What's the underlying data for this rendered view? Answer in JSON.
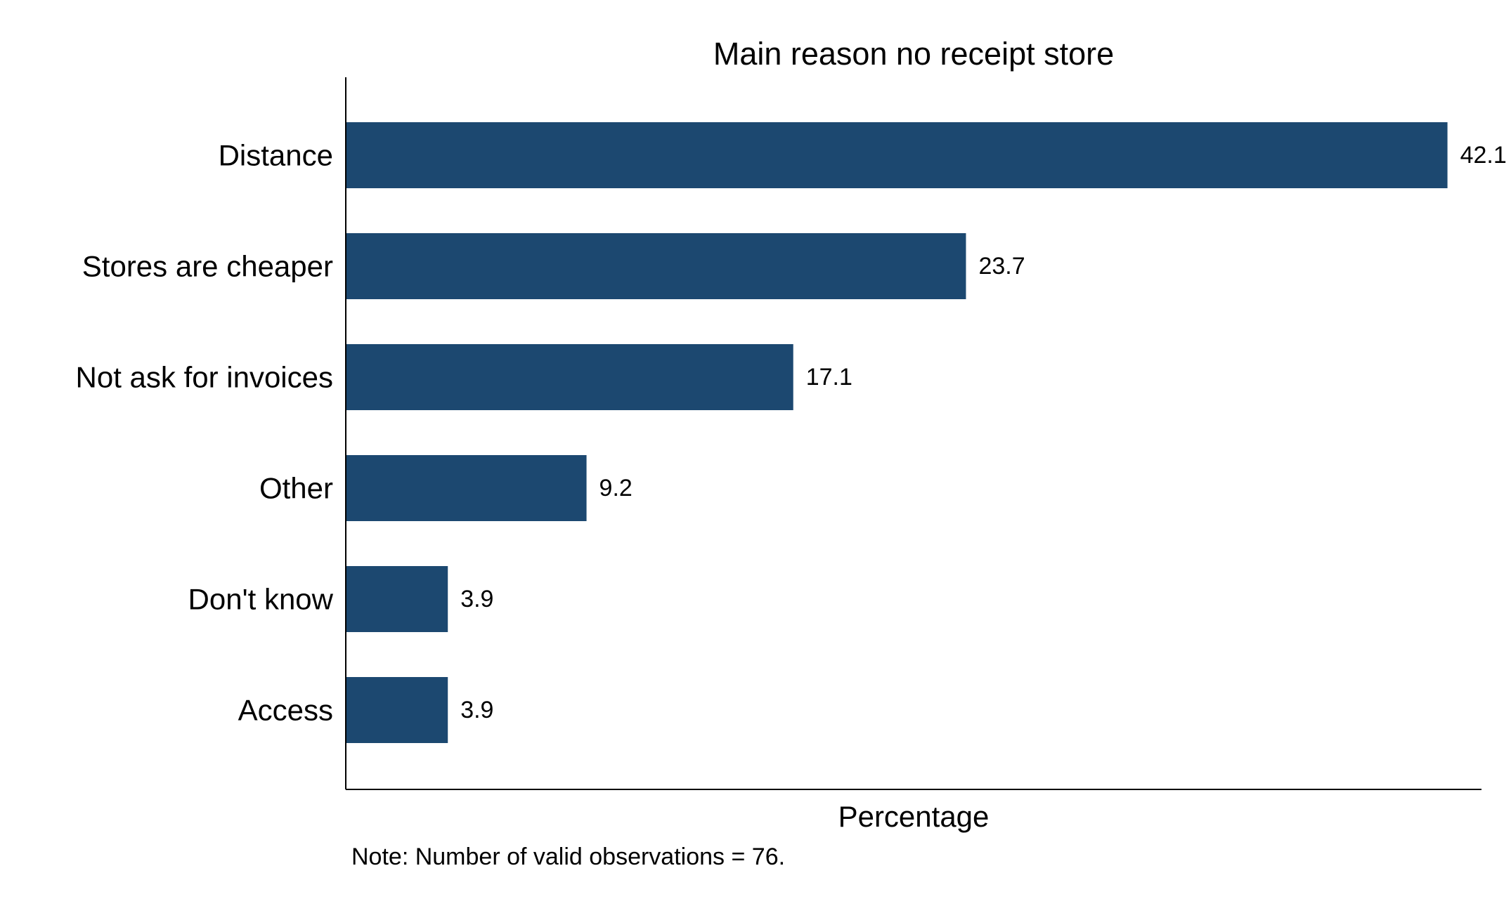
{
  "chart_data": {
    "type": "bar",
    "orientation": "horizontal",
    "title": "Main reason no receipt store",
    "xlabel": "Percentage",
    "ylabel": "",
    "note": "Note: Number of valid observations = 76.",
    "categories": [
      "Distance",
      "Stores are cheaper",
      "Not ask for invoices",
      "Other",
      "Don't know",
      "Access"
    ],
    "values": [
      42.1,
      23.7,
      17.1,
      9.2,
      3.9,
      3.9
    ],
    "value_labels": [
      "42.1",
      "23.7",
      "17.1",
      "9.2",
      "3.9",
      "3.9"
    ],
    "xlim": [
      0,
      43.4
    ],
    "grid": false,
    "legend": "none",
    "bar_color": "#1c4870",
    "axis_color": "#000000",
    "background": "#ffffff"
  }
}
